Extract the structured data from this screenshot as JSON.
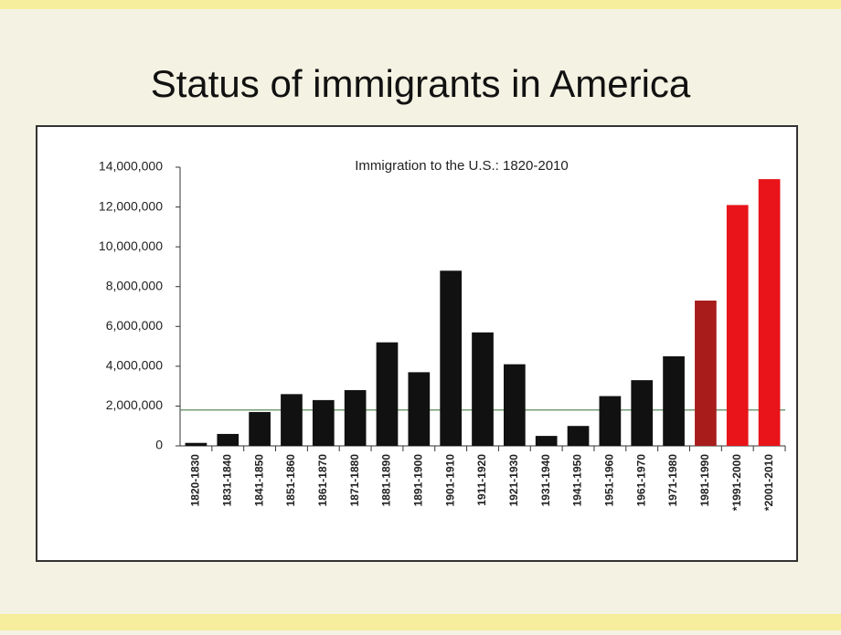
{
  "title": "Status of immigrants in America",
  "chart_data": {
    "type": "bar",
    "title": "Immigration to the U.S.: 1820-2010",
    "categories": [
      "1820-1830",
      "1831-1840",
      "1841-1850",
      "1851-1860",
      "1861-1870",
      "1871-1880",
      "1881-1890",
      "1891-1900",
      "1901-1910",
      "1911-1920",
      "1921-1930",
      "1931-1940",
      "1941-1950",
      "1951-1960",
      "1961-1970",
      "1971-1980",
      "1981-1990",
      "*1991-2000",
      "*2001-2010"
    ],
    "values": [
      150000,
      600000,
      1700000,
      2600000,
      2300000,
      2800000,
      5200000,
      3700000,
      8800000,
      5700000,
      4100000,
      500000,
      1000000,
      2500000,
      3300000,
      4500000,
      7300000,
      12100000,
      13400000
    ],
    "colors": [
      "#111111",
      "#111111",
      "#111111",
      "#111111",
      "#111111",
      "#111111",
      "#111111",
      "#111111",
      "#111111",
      "#111111",
      "#111111",
      "#111111",
      "#111111",
      "#111111",
      "#111111",
      "#111111",
      "#a81c1c",
      "#e8141a",
      "#e8141a"
    ],
    "ylim": [
      0,
      14000000
    ],
    "yticks": [
      {
        "value": 0,
        "label": "0"
      },
      {
        "value": 2000000,
        "label": "2,000,000"
      },
      {
        "value": 4000000,
        "label": "4,000,000"
      },
      {
        "value": 6000000,
        "label": "6,000,000"
      },
      {
        "value": 8000000,
        "label": "8,000,000"
      },
      {
        "value": 10000000,
        "label": "10,000,000"
      },
      {
        "value": 12000000,
        "label": "12,000,000"
      },
      {
        "value": 14000000,
        "label": "14,000,000"
      }
    ],
    "reference_line": {
      "value": 1800000,
      "color": "#5a8a5a"
    }
  }
}
